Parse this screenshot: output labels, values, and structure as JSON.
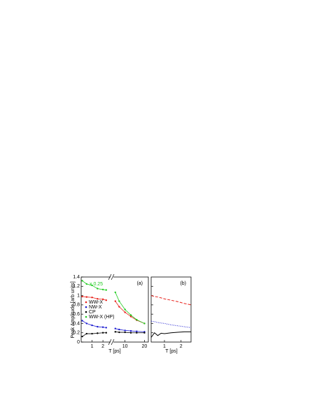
{
  "chart_data": [
    {
      "type": "line",
      "ylabel": "Peak Amplitude [arb units]",
      "xlabel": "T [ps]",
      "annotation": "x 0.25",
      "x": [
        0.1,
        0.5,
        1,
        1.5,
        2,
        2.3
      ],
      "xlim": [
        0,
        2.7
      ],
      "xticks": [
        1,
        2
      ],
      "ylim": [
        0,
        1.4
      ],
      "yticks": [
        0.0,
        0.2,
        0.4,
        0.6,
        0.8,
        1.0,
        1.2,
        1.4
      ],
      "series": [
        {
          "name": "WW-X",
          "color": "#e8201a",
          "values": [
            0.98,
            0.97,
            0.96,
            0.93,
            0.92,
            0.9
          ]
        },
        {
          "name": "NW-X",
          "color": "#1a1ad0",
          "values": [
            0.46,
            0.4,
            0.36,
            0.33,
            0.32,
            0.31
          ]
        },
        {
          "name": "CP",
          "color": "#000000",
          "values": [
            0.12,
            0.18,
            0.18,
            0.19,
            0.2,
            0.2
          ]
        },
        {
          "name": "WW-X (HP)",
          "color": "#22cc22",
          "values": [
            1.32,
            1.25,
            1.22,
            1.15,
            1.13,
            1.12
          ]
        }
      ]
    },
    {
      "type": "line",
      "panel_label": "(a)",
      "x": [
        5,
        7,
        10,
        13,
        16,
        20
      ],
      "xlim": [
        4,
        22
      ],
      "xticks": [
        10,
        20
      ],
      "ylim": [
        0,
        1.4
      ],
      "series": [
        {
          "color": "#e8201a",
          "values": [
            0.88,
            0.76,
            0.64,
            0.55,
            0.47,
            0.4
          ]
        },
        {
          "color": "#1a1ad0",
          "values": [
            0.29,
            0.27,
            0.25,
            0.24,
            0.23,
            0.22
          ]
        },
        {
          "color": "#000000",
          "values": [
            0.22,
            0.21,
            0.21,
            0.2,
            0.2,
            0.2
          ]
        },
        {
          "color": "#22cc22",
          "values": [
            1.07,
            0.88,
            0.7,
            0.58,
            0.48,
            0.4
          ]
        }
      ]
    },
    {
      "type": "line",
      "panel_label": "(b)",
      "xlabel": "T [ps]",
      "x": [
        0.2,
        0.4,
        0.6,
        0.8,
        1.0,
        1.4,
        1.8,
        2.2,
        2.6
      ],
      "xlim": [
        0.2,
        2.6
      ],
      "xticks": [
        1,
        2
      ],
      "ylim": [
        0,
        1.4
      ],
      "yticks": [
        0.2,
        0.4,
        0.6,
        0.8,
        1.0,
        1.2
      ],
      "series": [
        {
          "color": "#e8201a",
          "style": "dashed",
          "values": [
            1.0,
            0.98,
            0.97,
            0.95,
            0.93,
            0.9,
            0.87,
            0.83,
            0.8
          ]
        },
        {
          "color": "#1a1ad0",
          "style": "dotted",
          "values": [
            0.45,
            0.44,
            0.42,
            0.41,
            0.4,
            0.37,
            0.35,
            0.33,
            0.31
          ]
        },
        {
          "color": "#000000",
          "style": "solid",
          "values": [
            0.1,
            0.2,
            0.14,
            0.19,
            0.18,
            0.2,
            0.21,
            0.22,
            0.22
          ]
        }
      ]
    }
  ]
}
